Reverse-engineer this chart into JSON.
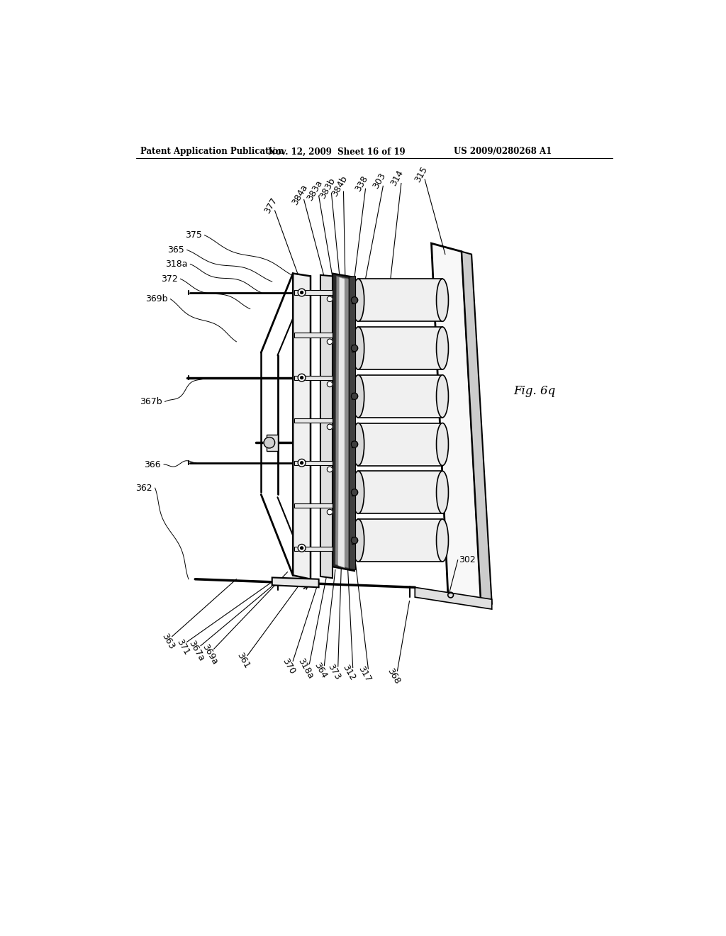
{
  "header_left": "Patent Application Publication",
  "header_mid": "Nov. 12, 2009  Sheet 16 of 19",
  "header_right": "US 2009/0280268 A1",
  "fig_label": "Fig. 6q",
  "background": "#ffffff",
  "lc": "#000000",
  "top_labels": [
    [
      "377",
      335,
      175
    ],
    [
      "384a",
      388,
      155
    ],
    [
      "383a",
      410,
      148
    ],
    [
      "383b",
      435,
      145
    ],
    [
      "384b",
      458,
      142
    ],
    [
      "338",
      498,
      138
    ],
    [
      "303",
      532,
      135
    ],
    [
      "314",
      565,
      130
    ],
    [
      "315",
      600,
      122
    ]
  ],
  "left_labels": [
    [
      "375",
      248,
      222
    ],
    [
      "365",
      212,
      248
    ],
    [
      "318a",
      218,
      272
    ],
    [
      "372",
      200,
      298
    ],
    [
      "369b",
      183,
      335
    ]
  ],
  "mid_labels": [
    [
      "367b",
      153,
      530
    ]
  ],
  "bot_left_labels": [
    [
      "366",
      153,
      645
    ],
    [
      "362",
      140,
      685
    ]
  ],
  "bot_labels": [
    [
      "363",
      148,
      900
    ],
    [
      "371",
      175,
      910
    ],
    [
      "367a",
      198,
      920
    ],
    [
      "369a",
      220,
      928
    ],
    [
      "361",
      290,
      938
    ],
    [
      "370",
      368,
      945
    ],
    [
      "318a",
      395,
      950
    ],
    [
      "364",
      422,
      955
    ],
    [
      "373",
      445,
      958
    ],
    [
      "312",
      472,
      961
    ],
    [
      "317",
      500,
      964
    ],
    [
      "368",
      555,
      968
    ]
  ],
  "label_302": [
    "302",
    670,
    820
  ]
}
